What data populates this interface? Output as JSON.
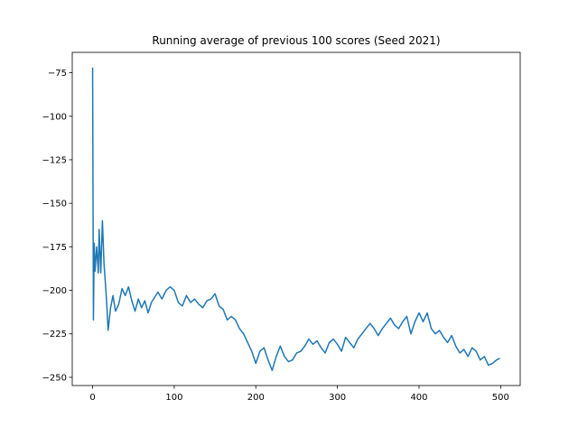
{
  "chart_data": {
    "type": "line",
    "title": "Running average of previous 100 scores (Seed 2021)",
    "x": [
      0,
      1,
      2,
      3,
      5,
      7,
      8,
      10,
      12,
      14,
      17,
      19,
      22,
      25,
      28,
      32,
      36,
      40,
      44,
      48,
      52,
      56,
      60,
      64,
      68,
      72,
      76,
      80,
      85,
      90,
      95,
      100,
      105,
      110,
      115,
      120,
      125,
      130,
      135,
      140,
      145,
      150,
      155,
      160,
      165,
      170,
      175,
      180,
      185,
      190,
      195,
      200,
      205,
      210,
      215,
      220,
      225,
      230,
      235,
      240,
      245,
      250,
      255,
      260,
      265,
      270,
      275,
      280,
      285,
      290,
      295,
      300,
      305,
      310,
      315,
      320,
      325,
      330,
      335,
      340,
      345,
      350,
      355,
      360,
      365,
      370,
      375,
      380,
      385,
      390,
      395,
      400,
      405,
      410,
      415,
      420,
      425,
      430,
      435,
      440,
      445,
      450,
      455,
      460,
      465,
      470,
      475,
      480,
      485,
      490,
      495,
      499
    ],
    "series": [
      {
        "name": "running average",
        "color": "#1f77b4",
        "values": [
          -72,
          -217,
          -173,
          -189,
          -175,
          -190,
          -165,
          -190,
          -160,
          -185,
          -205,
          -223,
          -210,
          -203,
          -212,
          -208,
          -199,
          -203,
          -198,
          -206,
          -212,
          -205,
          -210,
          -206,
          -213,
          -207,
          -204,
          -201,
          -205,
          -200,
          -198,
          -200,
          -207,
          -209,
          -203,
          -207,
          -205,
          -208,
          -210,
          -206,
          -205,
          -202,
          -209,
          -211,
          -217,
          -215,
          -217,
          -222,
          -225,
          -230,
          -235,
          -242,
          -235,
          -233,
          -240,
          -246,
          -238,
          -232,
          -238,
          -241,
          -240,
          -236,
          -235,
          -232,
          -228,
          -231,
          -229,
          -233,
          -236,
          -230,
          -228,
          -231,
          -235,
          -227,
          -230,
          -233,
          -228,
          -225,
          -222,
          -219,
          -222,
          -226,
          -222,
          -219,
          -216,
          -220,
          -222,
          -218,
          -215,
          -225,
          -218,
          -213,
          -218,
          -213,
          -222,
          -225,
          -223,
          -227,
          -230,
          -226,
          -232,
          -236,
          -234,
          -238,
          -233,
          -235,
          -240,
          -238,
          -243,
          -242,
          -240,
          -239
        ]
      }
    ],
    "xlim": [
      -24.95,
      523.95
    ],
    "ylim": [
      -254.7,
      -63.3
    ],
    "xticks": [
      0,
      100,
      200,
      300,
      400,
      500
    ],
    "yticks": [
      {
        "value": -250,
        "label": "−250"
      },
      {
        "value": -225,
        "label": "−225"
      },
      {
        "value": -200,
        "label": "−200"
      },
      {
        "value": -175,
        "label": "−175"
      },
      {
        "value": -150,
        "label": "−150"
      },
      {
        "value": -125,
        "label": "−125"
      },
      {
        "value": -100,
        "label": "−100"
      },
      {
        "value": -75,
        "label": "−75"
      }
    ]
  }
}
